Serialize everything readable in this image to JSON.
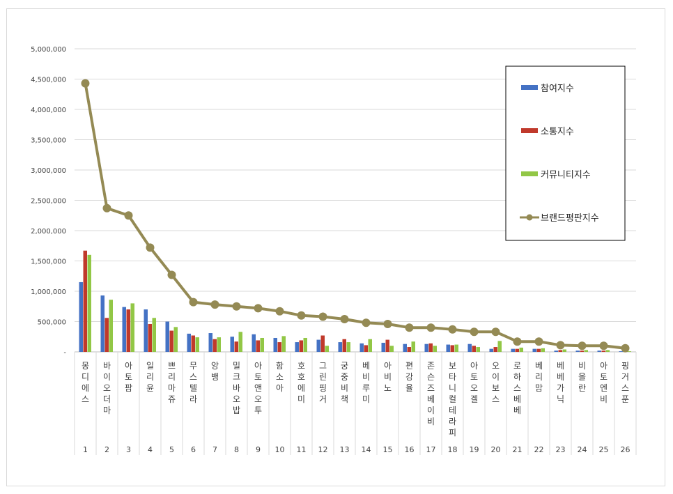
{
  "chart_data": {
    "type": "bar",
    "title": "",
    "xlabel": "",
    "ylabel": "",
    "ylim": [
      0,
      5000000
    ],
    "yticks": [
      "-",
      "500,000",
      "1,000,000",
      "1,500,000",
      "2,000,000",
      "2,500,000",
      "3,000,000",
      "3,500,000",
      "4,000,000",
      "4,500,000",
      "5,000,000"
    ],
    "grid": true,
    "legend_position": "right",
    "ranks": [
      "1",
      "2",
      "3",
      "4",
      "5",
      "6",
      "7",
      "8",
      "9",
      "10",
      "11",
      "12",
      "13",
      "14",
      "15",
      "16",
      "17",
      "18",
      "19",
      "20",
      "21",
      "22",
      "23",
      "24",
      "25",
      "26"
    ],
    "categories": [
      "몽디에스",
      "바이오더마",
      "아토팜",
      "일리윤",
      "쁘리마쥬",
      "무스텔라",
      "앙뱅",
      "밀크바오밥",
      "아토앤오투",
      "함소아",
      "호호에미",
      "그린핑거",
      "궁중비책",
      "베비루미",
      "아비노",
      "편강율",
      "존슨즈베이비",
      "보타니컬테라피",
      "아토오겔",
      "오이보스",
      "로하스베베",
      "베리맘",
      "베베가닉",
      "비올란",
      "아토엔비",
      "핑거스푼"
    ],
    "series": [
      {
        "name": "참여지수",
        "type": "bar",
        "color": "#4472c4",
        "values": [
          1150000,
          930000,
          740000,
          700000,
          500000,
          300000,
          310000,
          250000,
          290000,
          230000,
          160000,
          200000,
          160000,
          140000,
          150000,
          130000,
          130000,
          120000,
          130000,
          50000,
          50000,
          50000,
          20000,
          20000,
          20000,
          10000
        ]
      },
      {
        "name": "소통지수",
        "type": "bar",
        "color": "#c0392b",
        "values": [
          1670000,
          560000,
          700000,
          460000,
          350000,
          270000,
          210000,
          170000,
          190000,
          160000,
          190000,
          270000,
          210000,
          110000,
          200000,
          80000,
          140000,
          110000,
          100000,
          80000,
          50000,
          50000,
          30000,
          20000,
          20000,
          10000
        ]
      },
      {
        "name": "커뮤니티지수",
        "type": "bar",
        "color": "#92c746",
        "values": [
          1600000,
          860000,
          800000,
          560000,
          410000,
          240000,
          240000,
          330000,
          230000,
          260000,
          230000,
          100000,
          160000,
          210000,
          100000,
          170000,
          100000,
          120000,
          80000,
          180000,
          70000,
          60000,
          40000,
          30000,
          30000,
          10000
        ]
      },
      {
        "name": "브랜드평판지수",
        "type": "line",
        "color": "#948a54",
        "values": [
          4430000,
          2370000,
          2250000,
          1720000,
          1270000,
          820000,
          780000,
          750000,
          720000,
          670000,
          600000,
          580000,
          540000,
          480000,
          460000,
          400000,
          400000,
          370000,
          330000,
          330000,
          170000,
          170000,
          110000,
          100000,
          100000,
          60000
        ]
      }
    ]
  }
}
